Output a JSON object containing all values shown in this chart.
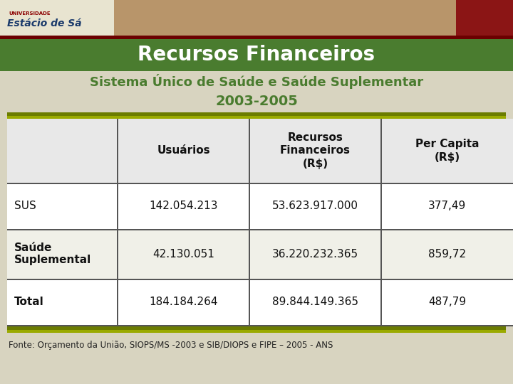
{
  "title": "Recursos Financeiros",
  "subtitle": "Sistema Único de Saúde e Saúde Suplementar",
  "year_range": "2003-2005",
  "title_bg": "#4a7c2f",
  "subtitle_color": "#4a7c2f",
  "year_color": "#4a7c2f",
  "col_headers": [
    "Usuários",
    "Recursos\nFinanceiros\n(R$)",
    "Per Capita\n(R$)"
  ],
  "row_labels": [
    "SUS",
    "Saúde\nSuplemental",
    "Total"
  ],
  "row_label_display": [
    "SUS",
    "Saúde\nSuplemental",
    "Total"
  ],
  "row_label_bold": [
    false,
    true,
    true
  ],
  "data": [
    [
      "142.054.213",
      "53.623.917.000",
      "377,49"
    ],
    [
      "42.130.051",
      "36.220.232.365",
      "859,72"
    ],
    [
      "184.184.264",
      "89.844.149.365",
      "487,79"
    ]
  ],
  "footer": "Fonte: Orçamento da União, SIOPS/MS -2003 e SIB/DIOPS e FIPE – 2005 - ANS",
  "fig_bg": "#d8d4c0",
  "table_bg": "#ffffff",
  "header_row_bg": "#e8e8e8",
  "olive_dark": "#6b7c00",
  "olive_light": "#9aaa00",
  "divider_color": "#555555",
  "photo_bg": "#b8956a",
  "logo_bg": "#e8e4d0",
  "red_stripe": "#8b1a1a",
  "row_bg": [
    "#ffffff",
    "#f0f0e8",
    "#ffffff"
  ]
}
